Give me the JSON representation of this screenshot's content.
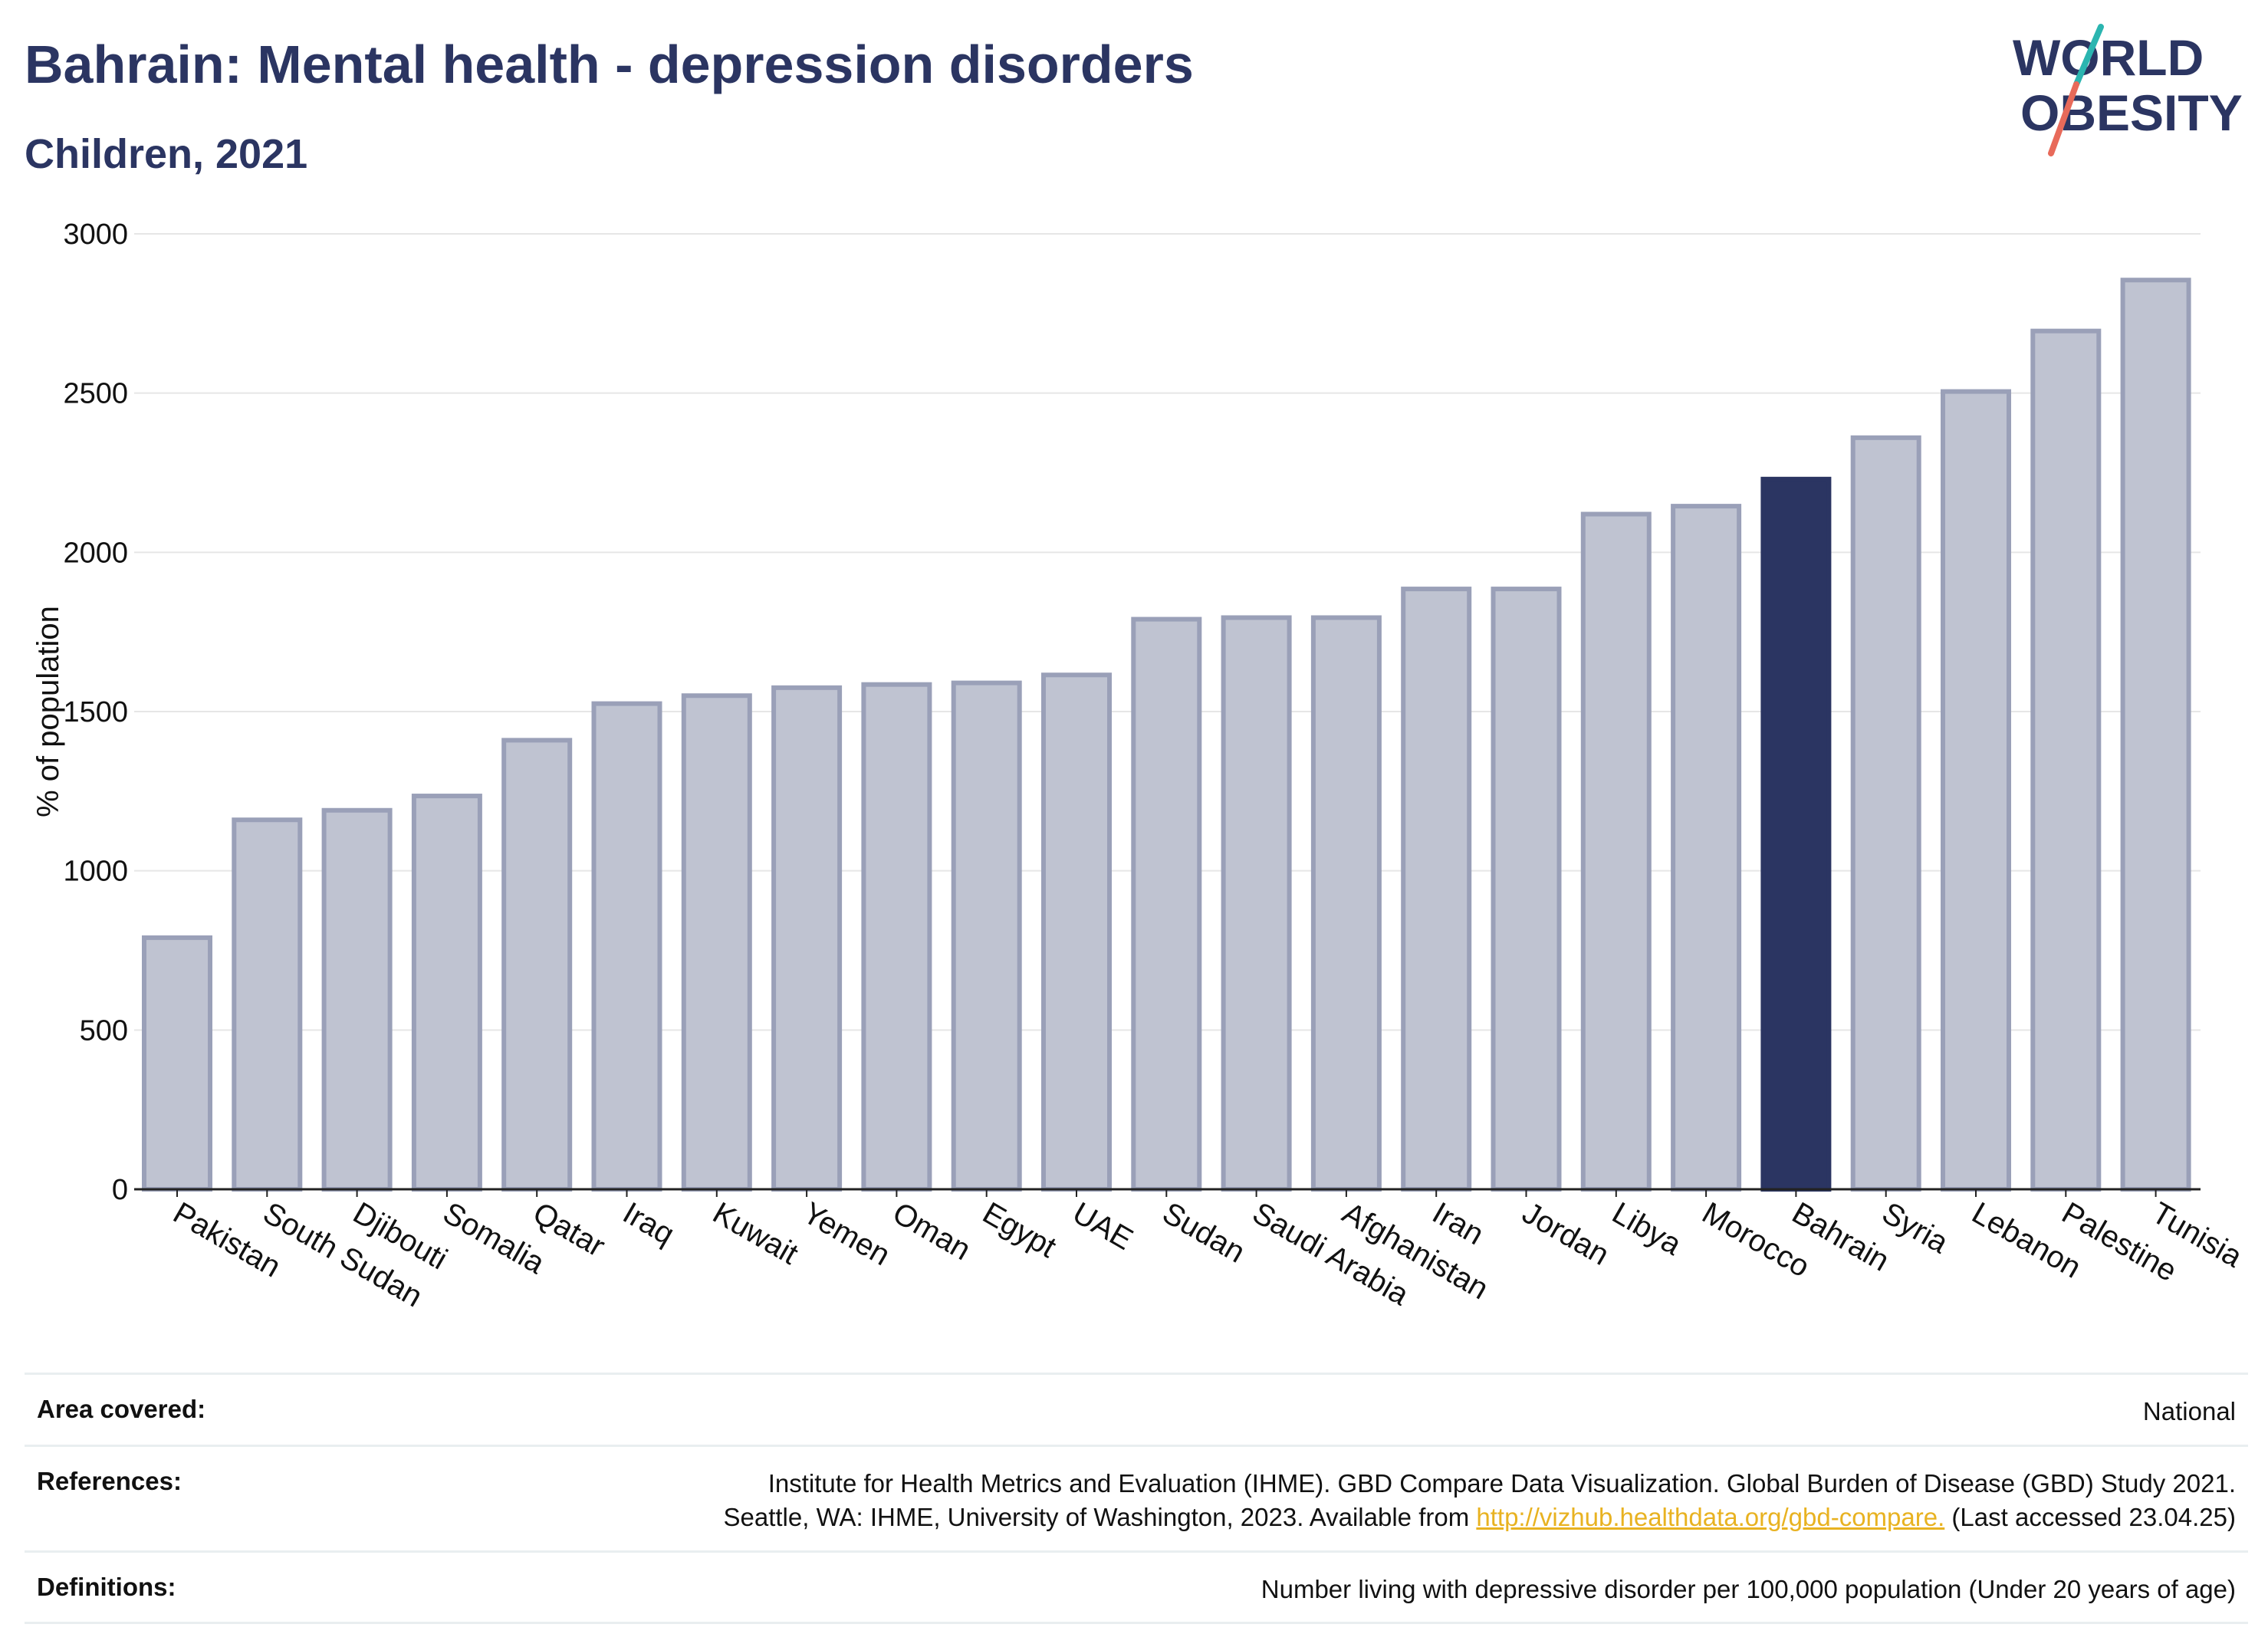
{
  "header": {
    "title": "Bahrain: Mental health - depression disorders",
    "subtitle": "Children, 2021",
    "logo_line1": "WORLD",
    "logo_line2": "OBESITY"
  },
  "colors": {
    "highlight": "#2b3562",
    "bar": "#bfc3d1",
    "bar_edge": "#9aa0b8",
    "logo_teal": "#2bb5b0",
    "logo_red": "#e86a5a"
  },
  "chart_data": {
    "type": "bar",
    "title": "Bahrain: Mental health - depression disorders",
    "subtitle": "Children, 2021",
    "ylabel": "% of population",
    "xlabel": "",
    "ylim": [
      0,
      3000
    ],
    "yticks": [
      "0",
      "500",
      "1000",
      "1500",
      "2000",
      "2500",
      "3000"
    ],
    "grid": true,
    "highlight": "Bahrain",
    "categories": [
      "Pakistan",
      "South Sudan",
      "Djibouti",
      "Somalia",
      "Qatar",
      "Iraq",
      "Kuwait",
      "Yemen",
      "Oman",
      "Egypt",
      "UAE",
      "Sudan",
      "Saudi Arabia",
      "Afghanistan",
      "Iran",
      "Jordan",
      "Libya",
      "Morocco",
      "Bahrain",
      "Syria",
      "Lebanon",
      "Palestine",
      "Tunisia"
    ],
    "values": [
      790,
      1160,
      1190,
      1235,
      1410,
      1525,
      1550,
      1575,
      1585,
      1590,
      1615,
      1790,
      1795,
      1795,
      1885,
      1885,
      2120,
      2145,
      2230,
      2360,
      2505,
      2695,
      2855
    ]
  },
  "footer": {
    "area_label": "Area covered:",
    "area_value": "National",
    "ref_label": "References:",
    "ref_line1": "Institute for Health Metrics and Evaluation (IHME). GBD Compare Data Visualization. Global Burden of Disease (GBD) Study 2021.",
    "ref_line2_pre": "Seattle, WA: IHME, University of Washington, 2023. Available from ",
    "ref_link": "http://vizhub.healthdata.org/gbd-compare.",
    "ref_line2_post": " (Last accessed 23.04.25)",
    "def_label": "Definitions:",
    "def_value": "Number living with depressive disorder per 100,000 population (Under 20 years of age)"
  }
}
